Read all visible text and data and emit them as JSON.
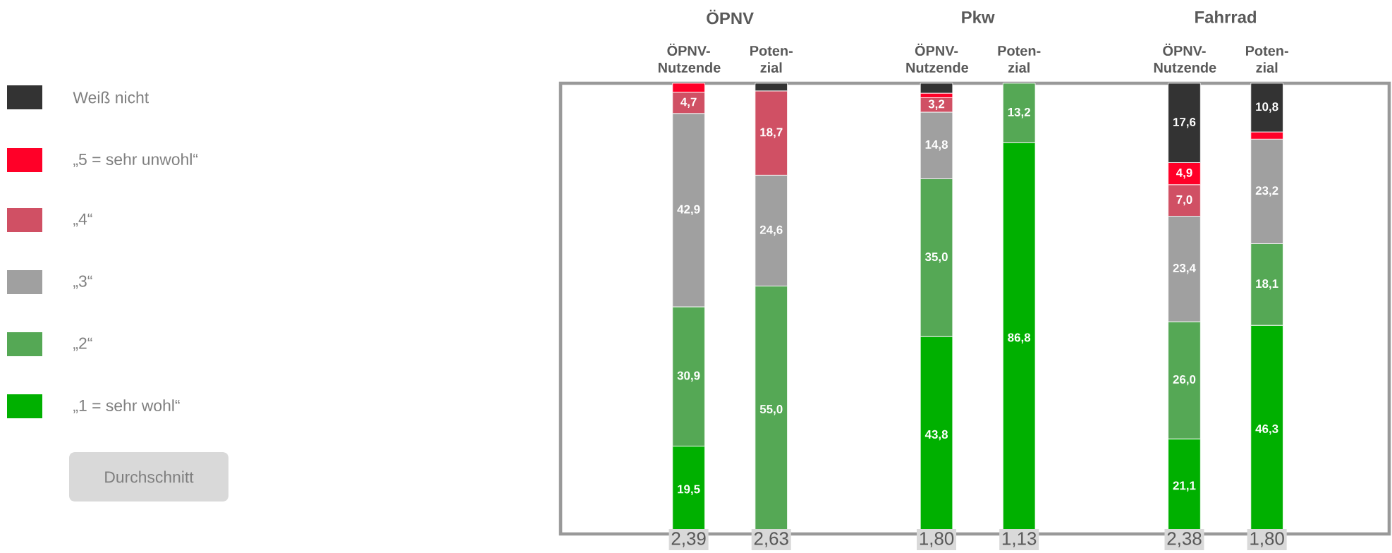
{
  "chart_data": {
    "type": "bar",
    "stacked": true,
    "categories": [
      "ÖPNV- Nutzende",
      "Poten- zial",
      null,
      "ÖPNV- Nutzende",
      "Poten- zial",
      null,
      "ÖPNV- Nutzende",
      "Poten- zial"
    ],
    "ylim": [
      0,
      100
    ],
    "legend": "left",
    "series": [
      {
        "name": "„1 = sehr wohl“",
        "color": "#00b000",
        "values": [
          19.5,
          0,
          null,
          43.8,
          86.8,
          null,
          21.1,
          46.3
        ],
        "value_labels": [
          "19,5",
          null,
          null,
          "43,8",
          "86,8",
          null,
          "21,1",
          "46,3"
        ]
      },
      {
        "name": "„2“",
        "color": "#55a855",
        "values": [
          30.9,
          55.0,
          null,
          35.0,
          13.2,
          null,
          26.0,
          18.1
        ],
        "value_labels": [
          "30,9",
          "55,0",
          null,
          "35,0",
          "13,2",
          null,
          "26,0",
          "18,1"
        ]
      },
      {
        "name": "„3“",
        "color": "#a0a0a0",
        "values": [
          42.9,
          24.6,
          null,
          14.8,
          0,
          null,
          23.4,
          23.2
        ],
        "value_labels": [
          "42,9",
          "24,6",
          null,
          "14,8",
          null,
          null,
          "23,4",
          "23,2"
        ]
      },
      {
        "name": "„4“",
        "color": "#d05064",
        "values": [
          4.7,
          18.7,
          null,
          3.2,
          0,
          null,
          7.0,
          0
        ],
        "value_labels": [
          "4,7",
          "18,7",
          null,
          "3,2",
          null,
          null,
          "7,0",
          null
        ]
      },
      {
        "name": "„5 = sehr unwohl“",
        "color": "#ff0028",
        "values": [
          2.0,
          0,
          null,
          1.0,
          0,
          null,
          4.9,
          1.6
        ],
        "value_labels": [
          null,
          null,
          null,
          null,
          null,
          null,
          "4,9",
          null
        ]
      },
      {
        "name": "Weiß nicht",
        "color": "#333333",
        "values": [
          0,
          1.7,
          null,
          2.2,
          0,
          null,
          17.6,
          10.8
        ],
        "value_labels": [
          null,
          null,
          null,
          null,
          null,
          null,
          "17,6",
          "10,8"
        ]
      }
    ],
    "annotations": [
      "ÖPNV",
      "Pkw",
      "Fahrrad",
      "Durchschnitt",
      "2,39",
      "2,63",
      "1,80",
      "1,13",
      "2,38",
      "1,80"
    ]
  }
}
